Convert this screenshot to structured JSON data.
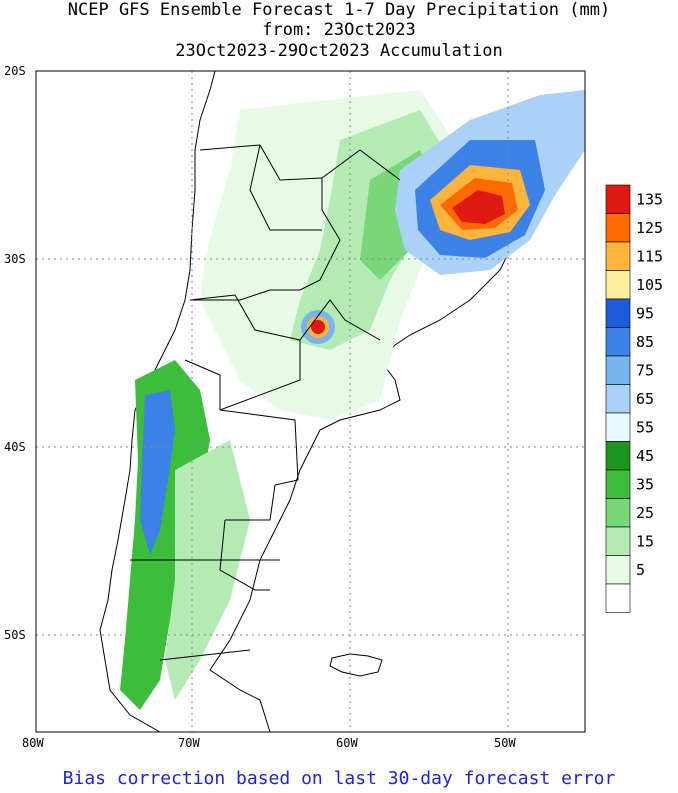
{
  "title": {
    "line1": "NCEP GFS Ensemble Forecast 1-7 Day Precipitation (mm)",
    "line2": "from: 23Oct2023",
    "line3": "23Oct2023-29Oct2023 Accumulation"
  },
  "axes": {
    "lat_labels": [
      "20S",
      "30S",
      "40S",
      "50S"
    ],
    "lon_labels": [
      "80W",
      "70W",
      "60W",
      "50W"
    ]
  },
  "legend": {
    "levels": [
      "135",
      "125",
      "115",
      "105",
      "95",
      "85",
      "75",
      "65",
      "55",
      "45",
      "35",
      "25",
      "15",
      "5"
    ],
    "colors": [
      "#e01a10",
      "#ff6a00",
      "#ffb43c",
      "#fff0a0",
      "#1e5adc",
      "#3c82e6",
      "#78b4f0",
      "#aad2f8",
      "#e6faff",
      "#1e961e",
      "#3cbe3c",
      "#78d778",
      "#b4ebb4",
      "#e6fae6",
      "#ffffff"
    ]
  },
  "footer": "Bias correction based on last 30-day forecast error"
}
